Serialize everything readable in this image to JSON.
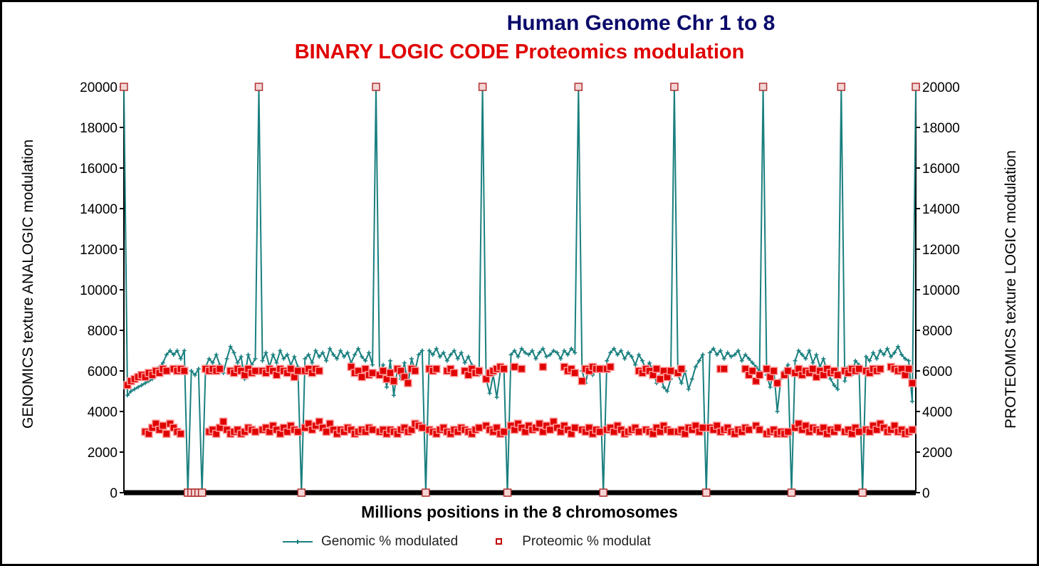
{
  "chart_data": {
    "type": "line",
    "title": "Human Genome Chr 1 to 8",
    "subtitle": "BINARY LOGIC CODE Proteomics modulation",
    "xlabel": "Millions positions in the 8 chromosomes",
    "ylabel_left": "GENOMICS texture ANALOGIC modulation",
    "ylabel_right": "PROTEOMICS texture LOGIC modulation",
    "ylim": [
      0,
      20000
    ],
    "yticks": [
      "0",
      "2000",
      "4000",
      "6000",
      "8000",
      "10000",
      "12000",
      "14000",
      "16000",
      "18000",
      "20000"
    ],
    "grid": false,
    "legend_position": "bottom",
    "colors": {
      "title": "#0b0b6b",
      "subtitle": "#e00000",
      "genomic": "#1a7f7f",
      "proteomic": "#e00000"
    },
    "series": [
      {
        "name": "Genomic % modulated",
        "marker": "plus-line",
        "values": [
          20000,
          4800,
          5000,
          5100,
          5200,
          5300,
          5400,
          5500,
          5600,
          5800,
          6200,
          6400,
          6800,
          7000,
          6800,
          7000,
          6600,
          7000,
          0,
          6000,
          5800,
          6100,
          0,
          6200,
          6600,
          6400,
          6800,
          6300,
          5900,
          6600,
          7200,
          6900,
          6400,
          6700,
          5600,
          6800,
          6300,
          6600,
          20000,
          6500,
          6900,
          6200,
          6800,
          6400,
          7000,
          6600,
          6800,
          6300,
          6700,
          6200,
          0,
          6600,
          6800,
          6400,
          7000,
          6700,
          6900,
          6500,
          7100,
          6800,
          6600,
          7000,
          6700,
          6900,
          6400,
          6800,
          7100,
          6700,
          6500,
          6900,
          6300,
          20000,
          5800,
          6300,
          5200,
          6500,
          4800,
          6100,
          5600,
          6400,
          5300,
          6600,
          6000,
          6800,
          7000,
          0,
          7000,
          6800,
          7100,
          6700,
          6900,
          6500,
          6800,
          7000,
          6600,
          6900,
          6400,
          6700,
          6300,
          6000,
          5800,
          20000,
          5600,
          4900,
          5800,
          4700,
          6000,
          6200,
          0,
          6800,
          7000,
          6700,
          7100,
          6900,
          6800,
          7000,
          6600,
          6900,
          7100,
          6700,
          6800,
          7000,
          6900,
          6600,
          7000,
          6800,
          7100,
          6900,
          20000,
          6000,
          5400,
          6200,
          5800,
          6100,
          6000,
          0,
          6500,
          6900,
          7100,
          6800,
          7000,
          6600,
          6900,
          6700,
          6300,
          6800,
          6500,
          6100,
          6400,
          6000,
          5400,
          5800,
          5200,
          5000,
          5600,
          20000,
          5800,
          5400,
          6000,
          5100,
          5600,
          6200,
          6500,
          6800,
          0,
          6900,
          7100,
          6800,
          7000,
          6600,
          6900,
          6700,
          6800,
          7000,
          6500,
          6800,
          6600,
          6400,
          6200,
          6000,
          20000,
          5800,
          5200,
          6100,
          4000,
          5600,
          6000,
          6300,
          0,
          6500,
          7000,
          6800,
          6600,
          7000,
          6400,
          6800,
          6200,
          6600,
          6000,
          5600,
          5300,
          5100,
          20000,
          5500,
          6200,
          5800,
          6500,
          6300,
          0,
          6700,
          6500,
          6900,
          6600,
          7000,
          6800,
          7100,
          6700,
          6900,
          7200,
          6800,
          6600,
          6500,
          4500,
          20000
        ]
      },
      {
        "name": "Proteomic % modulat",
        "marker": "square",
        "values_upper": [
          20000,
          5300,
          5500,
          5600,
          5700,
          5800,
          5700,
          5900,
          5800,
          6000,
          5900,
          6100,
          6000,
          null,
          6100,
          6000,
          6100,
          6000,
          0,
          0,
          0,
          0,
          0,
          6100,
          6000,
          6100,
          6000,
          6100,
          null,
          null,
          6000,
          5900,
          6100,
          6000,
          5800,
          6100,
          5900,
          6000,
          20000,
          6000,
          5900,
          6100,
          6000,
          5800,
          6100,
          6000,
          5900,
          6100,
          5700,
          6000,
          0,
          6000,
          6100,
          5900,
          6100,
          6000,
          null,
          null,
          null,
          null,
          null,
          null,
          null,
          null,
          6200,
          5900,
          6000,
          5700,
          6100,
          5800,
          5900,
          20000,
          5800,
          6000,
          5600,
          5900,
          5500,
          6100,
          6000,
          5700,
          5400,
          6100,
          6000,
          null,
          null,
          0,
          6100,
          6000,
          6100,
          null,
          null,
          6000,
          6100,
          5900,
          null,
          null,
          6000,
          5800,
          6100,
          5900,
          6000,
          20000,
          5600,
          5900,
          6000,
          6100,
          6200,
          6100,
          0,
          null,
          6200,
          null,
          6100,
          null,
          null,
          null,
          null,
          null,
          6200,
          null,
          null,
          null,
          null,
          null,
          6200,
          6000,
          6100,
          5900,
          20000,
          5500,
          6100,
          6000,
          6200,
          6100,
          6100,
          0,
          6100,
          6200,
          null,
          null,
          null,
          null,
          null,
          null,
          null,
          6000,
          5900,
          6100,
          6000,
          5800,
          6100,
          5600,
          6000,
          5700,
          6000,
          20000,
          5900,
          6100,
          null,
          null,
          null,
          null,
          null,
          null,
          0,
          null,
          null,
          null,
          6100,
          6100,
          null,
          null,
          null,
          null,
          null,
          6100,
          5800,
          6000,
          5500,
          5800,
          20000,
          6100,
          5700,
          6000,
          5400,
          null,
          5800,
          6000,
          0,
          5900,
          6100,
          5800,
          6000,
          5900,
          6100,
          5700,
          6000,
          5800,
          6100,
          5900,
          6000,
          5800,
          20000,
          6000,
          5900,
          6100,
          6000,
          6100,
          0,
          6000,
          5900,
          6100,
          6000,
          6100,
          null,
          null,
          6200,
          6100,
          6000,
          6100,
          5800,
          6100,
          5400,
          20000
        ],
        "values_lower": [
          null,
          null,
          null,
          null,
          null,
          null,
          3000,
          2900,
          3200,
          3400,
          3100,
          3300,
          2900,
          3400,
          3200,
          3000,
          2900,
          null,
          null,
          null,
          null,
          null,
          null,
          null,
          3000,
          3100,
          2900,
          3200,
          3500,
          3100,
          2900,
          3000,
          3100,
          2900,
          3000,
          3200,
          3100,
          3000,
          null,
          3100,
          3200,
          3000,
          3300,
          3100,
          2900,
          3200,
          3000,
          3300,
          3100,
          3000,
          null,
          3200,
          3400,
          3100,
          3300,
          3500,
          3200,
          3000,
          3400,
          3100,
          2900,
          3100,
          3000,
          3200,
          3100,
          2900,
          3000,
          3100,
          3000,
          3200,
          3100,
          null,
          3000,
          3100,
          2900,
          3100,
          3000,
          2900,
          3100,
          3200,
          3000,
          3100,
          3400,
          3300,
          3200,
          null,
          3100,
          3000,
          2900,
          3100,
          3200,
          3000,
          2900,
          3100,
          3000,
          3200,
          3100,
          3000,
          2900,
          3100,
          3200,
          null,
          3300,
          3100,
          3000,
          3200,
          2900,
          3000,
          null,
          3300,
          3100,
          3400,
          3200,
          3000,
          3300,
          3100,
          3200,
          3400,
          3000,
          3300,
          3100,
          3500,
          3200,
          3000,
          3300,
          3100,
          2900,
          3200,
          null,
          3100,
          3000,
          3200,
          2900,
          3100,
          3000,
          null,
          3100,
          3200,
          3000,
          3300,
          3100,
          2900,
          3000,
          3100,
          3200,
          3000,
          null,
          3100,
          3000,
          2900,
          3200,
          3000,
          3300,
          3100,
          3000,
          null,
          3000,
          3100,
          2900,
          3200,
          3100,
          3300,
          3000,
          3200,
          null,
          3200,
          3100,
          3300,
          3000,
          3100,
          3200,
          3000,
          2900,
          3100,
          3000,
          3200,
          3100,
          null,
          3300,
          3100,
          null,
          2900,
          3000,
          3100,
          2900,
          3000,
          2900,
          3000,
          null,
          3200,
          3400,
          3100,
          3300,
          3000,
          3200,
          3100,
          3000,
          3200,
          2900,
          3100,
          3000,
          3200,
          null,
          3000,
          3100,
          2900,
          3200,
          3000,
          null,
          3100,
          3000,
          3300,
          3100,
          3400,
          3200,
          3000,
          3100,
          3300,
          3000,
          3100,
          2900,
          3000,
          3100,
          null
        ]
      }
    ]
  }
}
